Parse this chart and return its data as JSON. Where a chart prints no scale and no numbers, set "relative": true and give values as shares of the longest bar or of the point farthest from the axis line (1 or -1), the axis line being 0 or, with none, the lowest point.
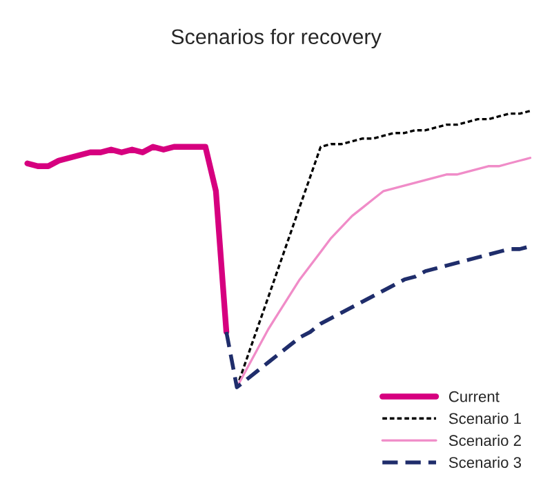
{
  "chart_data": {
    "type": "line",
    "title": "Scenarios for recovery",
    "relative": true,
    "legend": "bottom right",
    "categories": [
      null,
      null,
      null,
      null,
      null,
      null,
      null,
      null,
      null,
      null,
      null,
      null,
      null,
      null,
      null,
      null,
      null,
      null,
      null,
      null,
      null,
      null,
      null,
      null,
      null,
      null,
      null,
      null,
      null,
      null,
      null,
      null,
      null,
      null,
      null,
      null,
      null,
      null,
      null,
      null,
      null,
      null,
      null,
      null,
      null,
      null,
      null,
      null,
      null
    ],
    "series": [
      {
        "name": "Current",
        "color": "#d6007f",
        "line_style": "solid",
        "values": [
          0.81,
          0.8,
          0.8,
          0.82,
          0.83,
          0.84,
          0.85,
          0.85,
          0.86,
          0.85,
          0.86,
          0.85,
          0.87,
          0.86,
          0.87,
          0.87,
          0.87,
          0.87,
          0.71,
          0.2,
          null,
          null,
          null,
          null,
          null,
          null,
          null,
          null,
          null,
          null,
          null,
          null,
          null,
          null,
          null,
          null,
          null,
          null,
          null,
          null,
          null,
          null,
          null,
          null,
          null,
          null,
          null,
          null,
          null
        ]
      },
      {
        "name": "Scenario 1",
        "color": "#000000",
        "line_style": "dotted",
        "values": [
          null,
          null,
          null,
          null,
          null,
          null,
          null,
          null,
          null,
          null,
          null,
          null,
          null,
          null,
          null,
          null,
          null,
          null,
          null,
          null,
          0,
          0.109,
          0.218,
          0.326,
          0.435,
          0.544,
          0.653,
          0.761,
          0.87,
          0.88,
          0.88,
          0.89,
          0.9,
          0.9,
          0.91,
          0.92,
          0.92,
          0.93,
          0.93,
          0.94,
          0.95,
          0.95,
          0.96,
          0.97,
          0.97,
          0.98,
          0.99,
          0.99,
          1.0
        ]
      },
      {
        "name": "Scenario 2",
        "color": "#f08cc8",
        "line_style": "solid",
        "values": [
          null,
          null,
          null,
          null,
          null,
          null,
          null,
          null,
          null,
          null,
          null,
          null,
          null,
          null,
          null,
          null,
          null,
          null,
          null,
          null,
          0,
          0.07,
          0.14,
          0.21,
          0.27,
          0.33,
          0.39,
          0.44,
          0.49,
          0.54,
          0.58,
          0.62,
          0.65,
          0.68,
          0.71,
          0.72,
          0.73,
          0.74,
          0.75,
          0.76,
          0.77,
          0.77,
          0.78,
          0.79,
          0.8,
          0.8,
          0.81,
          0.82,
          0.83
        ]
      },
      {
        "name": "Scenario 3",
        "color": "#1f2d6b",
        "line_style": "dashed",
        "values": [
          null,
          null,
          null,
          null,
          null,
          null,
          null,
          null,
          null,
          null,
          null,
          null,
          null,
          null,
          null,
          null,
          null,
          null,
          null,
          0.2,
          0,
          0.03,
          0.06,
          0.09,
          0.12,
          0.15,
          0.18,
          0.2,
          0.23,
          0.25,
          0.27,
          0.29,
          0.31,
          0.33,
          0.35,
          0.37,
          0.39,
          0.4,
          0.42,
          0.43,
          0.44,
          0.45,
          0.46,
          0.47,
          0.48,
          0.49,
          0.5,
          0.5,
          0.51
        ]
      }
    ]
  }
}
